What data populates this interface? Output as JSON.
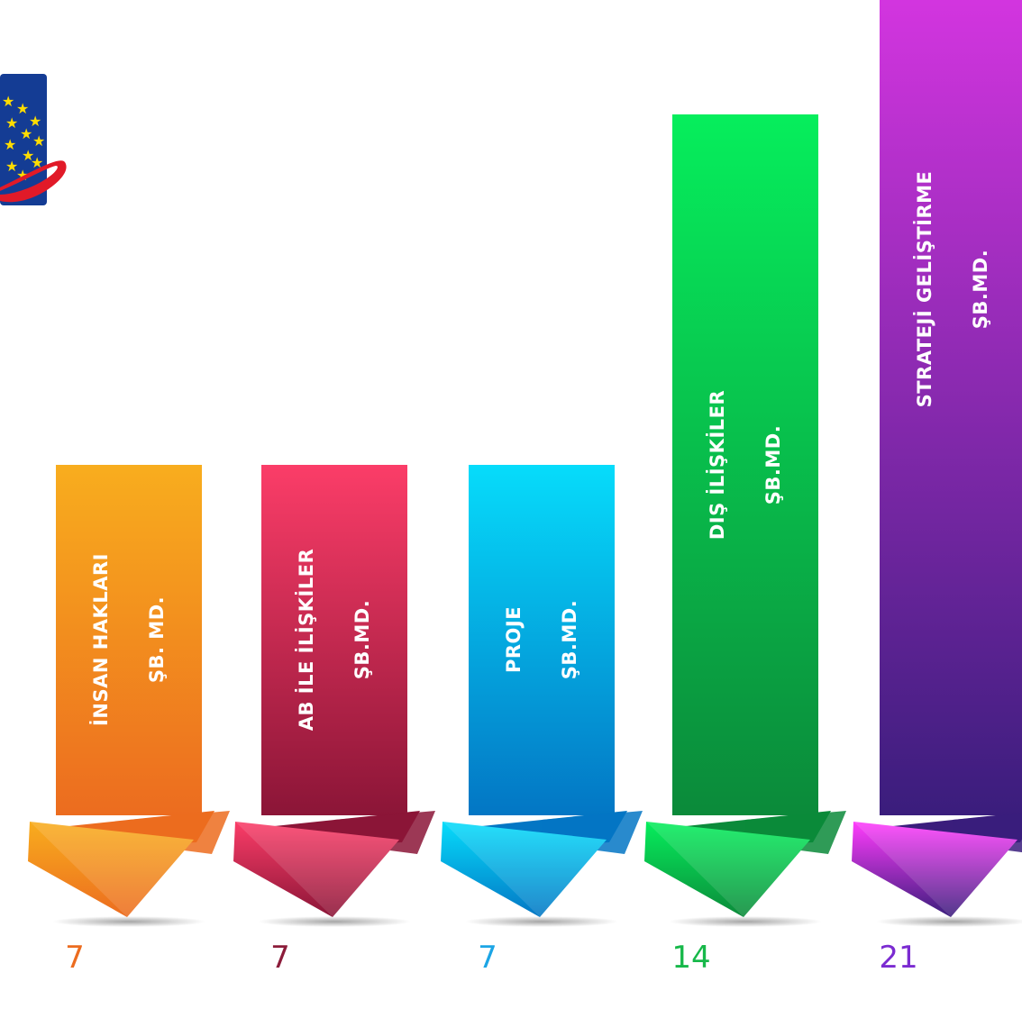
{
  "chart_data": {
    "type": "bar",
    "categories": [
      [
        "İNSAN HAKLARI",
        "ŞB. MD."
      ],
      [
        "AB İLE İLİŞKİLER",
        "ŞB.MD."
      ],
      [
        "PROJE",
        "ŞB.MD."
      ],
      [
        "DIŞ İLİŞKİLER",
        "ŞB.MD."
      ],
      [
        "STRATEJİ GELİŞTİRME",
        "ŞB.MD."
      ]
    ],
    "values": [
      7,
      7,
      7,
      14,
      21
    ],
    "colors": [
      {
        "top": "#f8ad1e",
        "bottom": "#ec6c1f",
        "value": "#ec6c1f"
      },
      {
        "top": "#fb3d68",
        "bottom": "#8b1537",
        "value": "#8c1c3a"
      },
      {
        "top": "#06dcfb",
        "bottom": "#0376c4",
        "value": "#1ca5e5"
      },
      {
        "top": "#06ee5c",
        "bottom": "#0b8a3a",
        "value": "#17b84a"
      },
      {
        "top": "#ff3cfc",
        "bottom": "#3a1d7c",
        "value": "#7b2bd1"
      }
    ],
    "title": "",
    "xlabel": "",
    "ylabel": "",
    "ylim": [
      0,
      21
    ]
  },
  "logo": {
    "name": "eu-globe-logo"
  }
}
